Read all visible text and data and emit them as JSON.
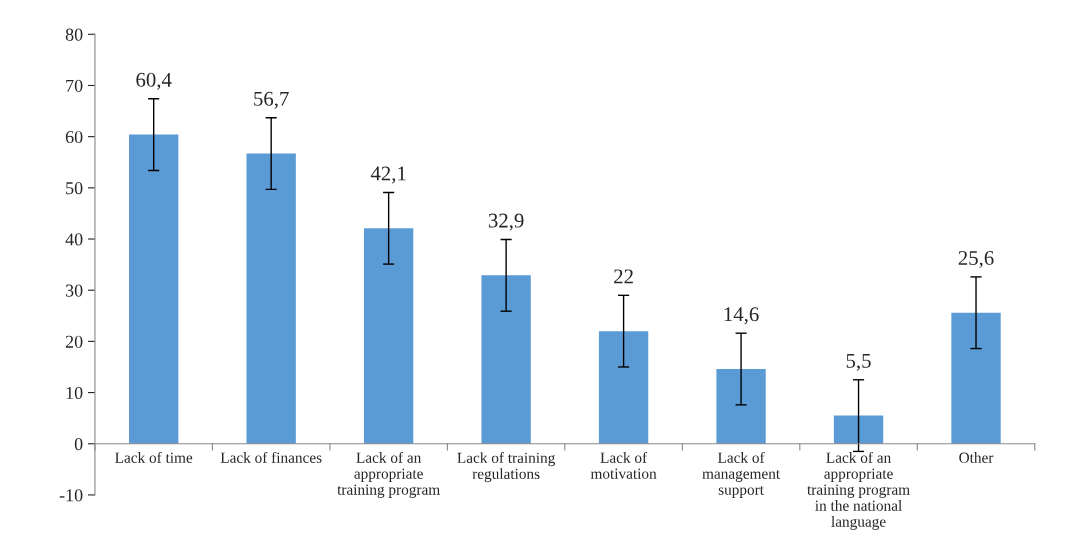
{
  "chart_data": {
    "type": "bar",
    "categories": [
      "Lack of time",
      "Lack of finances",
      "Lack of an\nappropriate\ntraining program",
      "Lack of training\nregulations",
      "Lack of\nmotivation",
      "Lack of\nmanagement\nsupport",
      "Lack of an\nappropriate\ntraining program\nin the national\nlanguage",
      "Other"
    ],
    "values": [
      60.4,
      56.7,
      42.1,
      32.9,
      22,
      14.6,
      5.5,
      25.6
    ],
    "value_labels": [
      "60,4",
      "56,7",
      "42,1",
      "32,9",
      "22",
      "14,6",
      "5,5",
      "25,6"
    ],
    "errors": [
      7,
      7,
      7,
      7,
      7,
      7,
      7,
      7
    ],
    "color": "#5b9bd5",
    "ylim": [
      -10,
      80
    ],
    "yticks": [
      -10,
      0,
      10,
      20,
      30,
      40,
      50,
      60,
      70,
      80
    ],
    "grid": false,
    "legend": false
  }
}
